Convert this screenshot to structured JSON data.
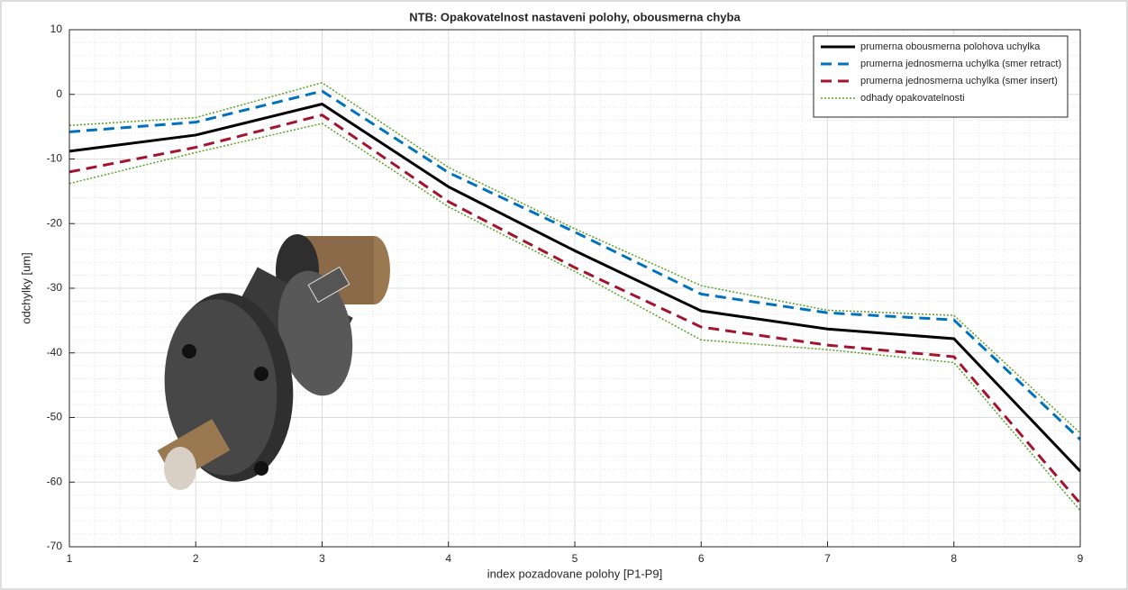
{
  "chart_data": {
    "type": "line",
    "title": "NTB: Opakovatelnost nastaveni polohy, obousmerna chyba",
    "xlabel": "index pozadovane polohy [P1-P9]",
    "ylabel": "odchylky [um]",
    "x": [
      1,
      2,
      3,
      4,
      5,
      6,
      7,
      8,
      9
    ],
    "xlim": [
      1,
      9
    ],
    "xticks": [
      1,
      2,
      3,
      4,
      5,
      6,
      7,
      8,
      9
    ],
    "ylim": [
      -70,
      10
    ],
    "yticks": [
      -70,
      -60,
      -50,
      -40,
      -30,
      -20,
      -10,
      0,
      10
    ],
    "grid": true,
    "minor_grid": true,
    "legend": "upper right",
    "series": [
      {
        "name": "prumerna obousmerna polohova uchylka",
        "color": "#000000",
        "style": "solid",
        "values": [
          -8.8,
          -6.3,
          -1.5,
          -14.3,
          -24.2,
          -33.5,
          -36.3,
          -37.8,
          -58.3
        ]
      },
      {
        "name": "prumerna jednosmerna uchylka (smer retract)",
        "color": "#0072bd",
        "style": "dashed",
        "values": [
          -5.8,
          -4.3,
          0.5,
          -12.1,
          -21.3,
          -30.9,
          -33.8,
          -34.9,
          -53.4
        ]
      },
      {
        "name": "prumerna jednosmerna uchylka (smer insert)",
        "color": "#a2142f",
        "style": "dashed",
        "values": [
          -12,
          -8.2,
          -3.2,
          -16.6,
          -26.8,
          -36,
          -38.8,
          -40.6,
          -63.3
        ]
      }
    ],
    "band": {
      "name": "odhady opakovatelnosti",
      "color": "#5aa020",
      "upper": [
        -4.8,
        -3.6,
        1.8,
        -11.3,
        -20.8,
        -29.6,
        -33.4,
        -34.2,
        -52.4
      ],
      "lower": [
        -13.8,
        -9,
        -4.5,
        -17.4,
        -27.4,
        -38,
        -39.5,
        -41.5,
        -64.4
      ]
    }
  }
}
